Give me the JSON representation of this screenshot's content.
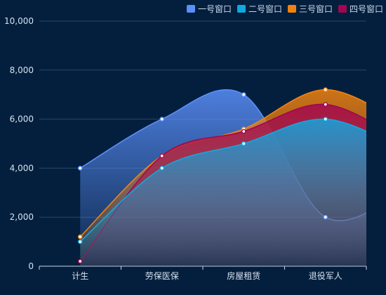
{
  "chart_data": {
    "type": "area",
    "categories": [
      "计生",
      "劳保医保",
      "房屋租赁",
      "退役军人"
    ],
    "ylim": [
      0,
      10000
    ],
    "yticks": [
      "0",
      "2,000",
      "4,000",
      "6,000",
      "8,000",
      "10,000"
    ],
    "yticks_values": [
      0,
      2000,
      4000,
      6000,
      8000,
      10000
    ],
    "grid": true,
    "legend_position": "top-right",
    "series": [
      {
        "name": "一号窗口",
        "color": "#5b8ff9",
        "values": [
          4000,
          6000,
          7000,
          2000
        ],
        "next": 3200
      },
      {
        "name": "二号窗口",
        "color": "#11a8e0",
        "values": [
          1000,
          4000,
          5000,
          6000
        ],
        "next": 4700
      },
      {
        "name": "三号窗口",
        "color": "#f2820f",
        "values": [
          1200,
          4500,
          5600,
          7200
        ],
        "next": 5700
      },
      {
        "name": "四号窗口",
        "color": "#a3064f",
        "values": [
          200,
          4500,
          5500,
          6600
        ],
        "next": 5000
      }
    ]
  }
}
